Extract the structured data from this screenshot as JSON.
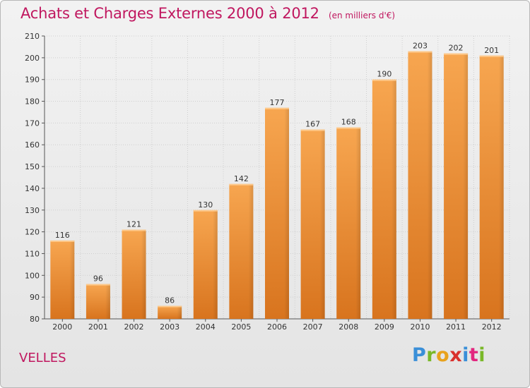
{
  "header": {
    "title": "Achats et Charges Externes 2000 à 2012",
    "unit": "(en milliers d'€)"
  },
  "footer": {
    "commune": "VELLES",
    "logo": [
      "P",
      "r",
      "o",
      "x",
      "i",
      "t",
      "i"
    ]
  },
  "colors": {
    "title": "#c0175f",
    "bar_top": "#f7a650",
    "bar_bottom": "#d8741e",
    "grid": "#cfcfcf",
    "logo": [
      "#3a8fd8",
      "#7ab828",
      "#e8a21c",
      "#d9302c",
      "#3a8fd8",
      "#e2267f",
      "#7ab828"
    ]
  },
  "chart_data": {
    "type": "bar",
    "categories": [
      "2000",
      "2001",
      "2002",
      "2003",
      "2004",
      "2005",
      "2006",
      "2007",
      "2008",
      "2009",
      "2010",
      "2011",
      "2012"
    ],
    "values": [
      116,
      96,
      121,
      86,
      130,
      142,
      177,
      167,
      168,
      190,
      203,
      202,
      201
    ],
    "ylim": [
      80,
      210
    ],
    "yticks": [
      80,
      90,
      100,
      110,
      120,
      130,
      140,
      150,
      160,
      170,
      180,
      190,
      200,
      210
    ],
    "grid": true
  }
}
